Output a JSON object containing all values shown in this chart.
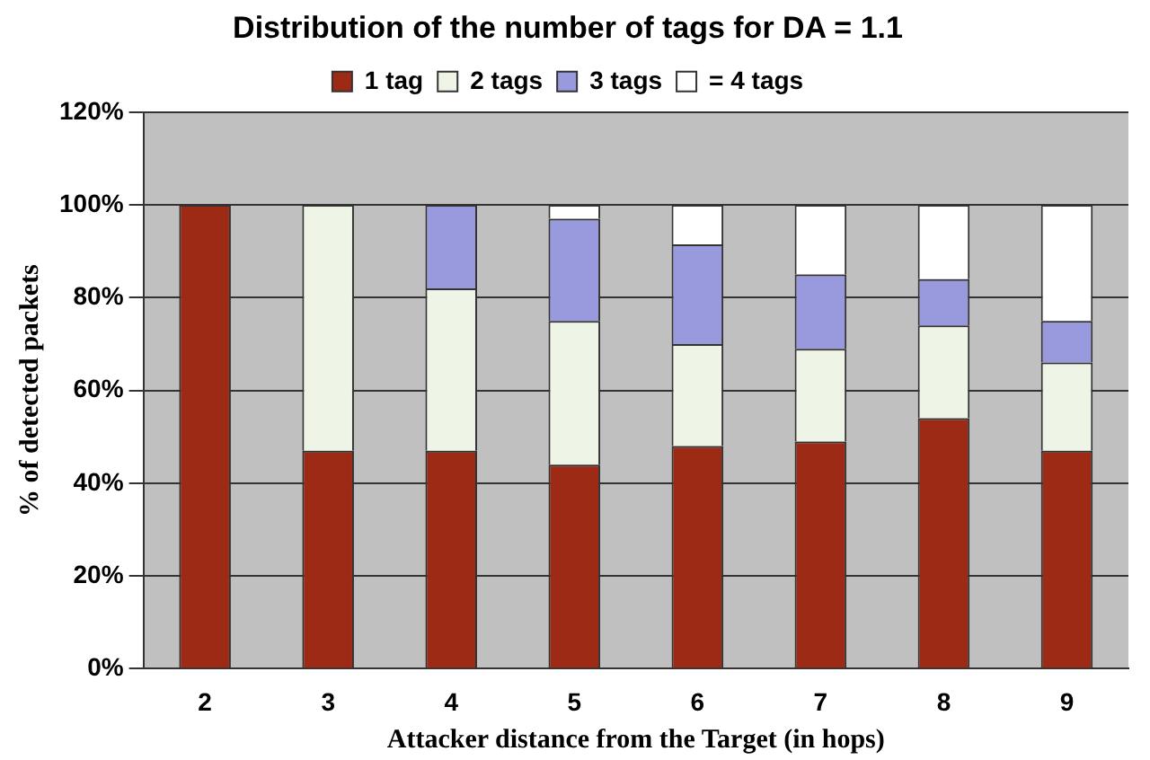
{
  "chart_data": {
    "type": "bar",
    "title": "Distribution of the number of tags for DA = 1.1",
    "xlabel": "Attacker distance from the Target (in hops)",
    "ylabel": "% of detected packets",
    "categories": [
      "2",
      "3",
      "4",
      "5",
      "6",
      "7",
      "8",
      "9"
    ],
    "series": [
      {
        "name": "1 tag",
        "color": "#9c2a14",
        "values": [
          100,
          47,
          47,
          44,
          48,
          49,
          54,
          47
        ]
      },
      {
        "name": "2 tags",
        "color": "#eef5e6",
        "values": [
          0,
          53,
          35,
          31,
          22,
          20,
          20,
          19
        ]
      },
      {
        "name": "3 tags",
        "color": "#9999dd",
        "values": [
          0,
          0,
          18,
          22,
          21.5,
          16,
          10,
          9
        ]
      },
      {
        "name": "= 4 tags",
        "color": "#ffffff",
        "values": [
          0,
          0,
          0,
          3,
          8.5,
          15,
          16,
          25
        ]
      }
    ],
    "stacked": true,
    "ylim": [
      0,
      120
    ],
    "yticks": [
      {
        "value": 0,
        "label": "0%"
      },
      {
        "value": 20,
        "label": "20%"
      },
      {
        "value": 40,
        "label": "40%"
      },
      {
        "value": 60,
        "label": "60%"
      },
      {
        "value": 80,
        "label": "80%"
      },
      {
        "value": 100,
        "label": "100%"
      },
      {
        "value": 120,
        "label": "120%"
      }
    ],
    "grid": "y",
    "legend": "top"
  }
}
